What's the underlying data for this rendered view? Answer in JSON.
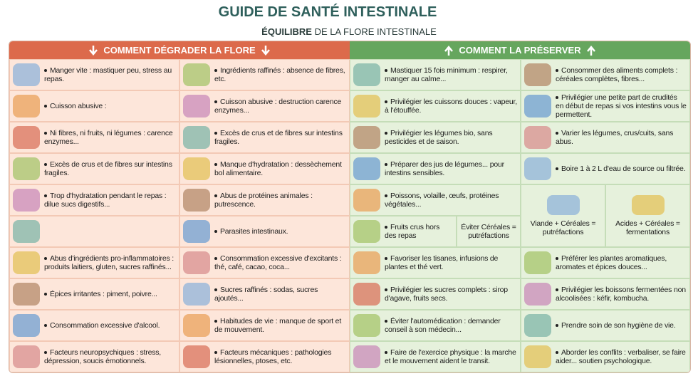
{
  "header": {
    "title": "GUIDE DE SANTÉ INTESTINALE",
    "subtitle_bold": "ÉQUILIBRE",
    "subtitle_rest": "DE LA FLORE INTESTINALE"
  },
  "degrade": {
    "heading": "COMMENT DÉGRADER LA FLORE",
    "col1": [
      "Manger vite : mastiquer peu, stress au repas.",
      "Cuisson abusive :",
      "Ni fibres, ni fruits, ni légumes : carence enzymes...",
      "Excès de crus et de fibres sur intestins fragiles.",
      "Trop d'hydratation pendant le repas : dilue sucs digestifs...",
      "Abus d'ingrédients pro-inflammatoires : produits laitiers, gluten, sucres raffinés...",
      "Épices irritantes : piment, poivre...",
      "Consommation excessive d'alcool.",
      "Facteurs neuropsychiques : stress, dépression, soucis émotionnels."
    ],
    "col2": [
      "Ingrédients raffinés : absence de fibres, etc.",
      "Cuisson abusive : destruction carence enzymes...",
      "Excès de crus et de fibres sur intestins fragiles.",
      "Manque d'hydratation : dessèchement bol alimentaire.",
      "Abus de protéines animales : putrescence.",
      "Parasites intestinaux.",
      "Consommation excessive d'excitants : thé, café, cacao, coca...",
      "Sucres raffinés : sodas, sucres ajoutés...",
      "Habitudes de vie : manque de sport et de mouvement.",
      "Facteurs mécaniques : pathologies lésionnelles, ptoses, etc."
    ]
  },
  "preserve": {
    "heading": "COMMENT LA PRÉSERVER",
    "col1": [
      "Mastiquer 15 fois minimum : respirer, manger au calme...",
      "Privilégier les cuissons douces : vapeur, à l'étouffée.",
      "Privilégier les légumes bio, sans pesticides et de saison.",
      "Préparer des jus de légumes... pour intestins sensibles.",
      "Favoriser les tisanes, infusions de plantes et thé vert.",
      "Privilégier les sucres complets : sirop d'agave, fruits secs.",
      "Éviter l'automédication : demander conseil à son médecin...",
      "Faire de l'exercice physique : la marche et le mouvement aident le transit."
    ],
    "col2": [
      "Consommer des aliments complets : céréales complètes, fibres...",
      "Privilégier une petite part de crudités en début de repas si vos intestins vous le permettent.",
      "Varier les légumes, crus/cuits, sans abus.",
      "Boire 1 à 2 L d'eau de source ou filtrée.",
      "Préférer les plantes aromatiques, aromates et épices douces...",
      "Privilégier les boissons fermentées non alcoolisées : kéfir, kombucha.",
      "Prendre soin de son hygiène de vie.",
      "Aborder les conflits : verbaliser, se faire aider... soutien psychologique."
    ],
    "combos": {
      "proteins": "Poissons, volaille, œufs, protéines végétales...",
      "fruits": "Fruits crus hors des repas",
      "avoid": "Éviter Céréales = putréfactions",
      "meat": "Viande + Céréales = putréfactions",
      "acids": "Acides + Céréales = fermentations"
    }
  }
}
